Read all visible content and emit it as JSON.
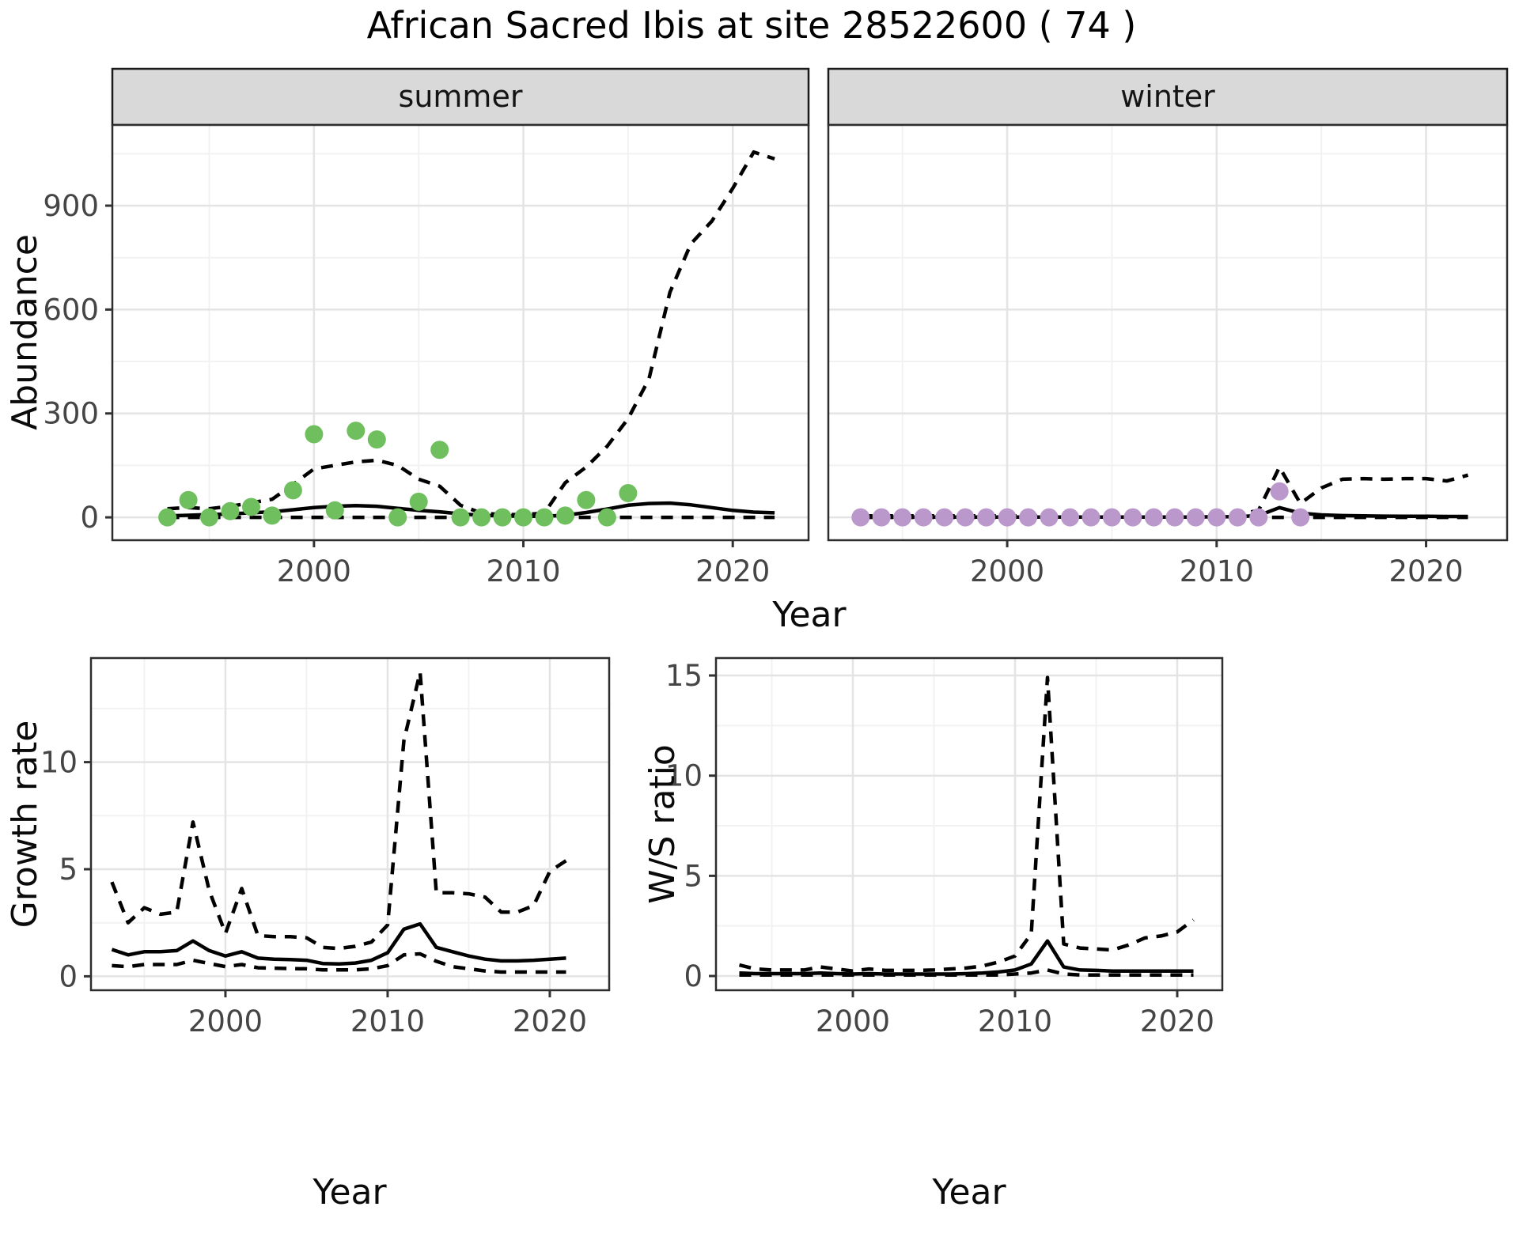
{
  "title": "African Sacred Ibis at site 28522600 ( 74 )",
  "facets": [
    {
      "label": "summer"
    },
    {
      "label": "winter"
    }
  ],
  "colors": {
    "summer_point": "#6fbf5f",
    "winter_point": "#bb98cc",
    "line": "#000000",
    "strip_bg": "#d9d9d9",
    "strip_border": "#1a1a1a",
    "panel_border": "#2d2d2d",
    "grid_major": "#e4e4e4",
    "grid_minor": "#f2f2f2",
    "tick_text": "#454545",
    "tick_mark": "#333333"
  },
  "chart_data": [
    {
      "id": "summer",
      "type": "line",
      "strip": "summer",
      "xlabel": "Year",
      "ylabel": "Abundance",
      "x_ticks": [
        2000,
        2010,
        2020
      ],
      "y_ticks": [
        0,
        300,
        600,
        900
      ],
      "xlim": [
        1990.37,
        2023.62
      ],
      "ylim": [
        -66,
        1133
      ],
      "show_y_labels": true,
      "legend": "none",
      "grid": "on",
      "points": {
        "name": "observed summer counts",
        "color": "#6fbf5f",
        "years": [
          1993,
          1994,
          1995,
          1996,
          1997,
          1998,
          1999,
          2000,
          2001,
          2002,
          2003,
          2004,
          2005,
          2006,
          2007,
          2008,
          2009,
          2010,
          2011,
          2012,
          2013,
          2014,
          2015
        ],
        "values": [
          0,
          50,
          0,
          18,
          30,
          5,
          78,
          240,
          20,
          250,
          225,
          0,
          45,
          195,
          0,
          0,
          0,
          0,
          0,
          5,
          50,
          0,
          70
        ]
      },
      "series": [
        {
          "name": "fit",
          "style": "solid",
          "years": [
            1993,
            1994,
            1995,
            1996,
            1997,
            1998,
            1999,
            2000,
            2001,
            2002,
            2003,
            2004,
            2005,
            2006,
            2007,
            2008,
            2009,
            2010,
            2011,
            2012,
            2013,
            2014,
            2015,
            2016,
            2017,
            2018,
            2019,
            2020,
            2021,
            2022
          ],
          "values": [
            4,
            6,
            8,
            10,
            13,
            16,
            22,
            28,
            32,
            34,
            32,
            26,
            20,
            16,
            10,
            6,
            4,
            3,
            3,
            6,
            14,
            24,
            35,
            40,
            41,
            36,
            28,
            20,
            15,
            13
          ]
        },
        {
          "name": "upper_ci",
          "style": "dashed",
          "years": [
            1993,
            1994,
            1995,
            1996,
            1997,
            1998,
            1999,
            2000,
            2001,
            2002,
            2003,
            2004,
            2005,
            2006,
            2007,
            2008,
            2009,
            2010,
            2011,
            2012,
            2013,
            2014,
            2015,
            2016,
            2017,
            2018,
            2019,
            2020,
            2021,
            2022
          ],
          "values": [
            25,
            28,
            25,
            32,
            42,
            52,
            95,
            140,
            150,
            160,
            165,
            150,
            110,
            90,
            35,
            12,
            8,
            8,
            12,
            100,
            145,
            205,
            285,
            400,
            650,
            790,
            855,
            950,
            1055,
            1035
          ]
        },
        {
          "name": "lower_ci",
          "style": "dashed",
          "years": [
            1993,
            1994,
            1995,
            1996,
            1997,
            1998,
            1999,
            2000,
            2001,
            2002,
            2003,
            2004,
            2005,
            2006,
            2007,
            2008,
            2009,
            2010,
            2011,
            2012,
            2013,
            2014,
            2015,
            2016,
            2017,
            2018,
            2019,
            2020,
            2021,
            2022
          ],
          "values": [
            0,
            0,
            0,
            0,
            0,
            0,
            0,
            0,
            0,
            0,
            0,
            0,
            0,
            0,
            0,
            0,
            0,
            0,
            0,
            0,
            0,
            0,
            0,
            0,
            0,
            0,
            0,
            0,
            0,
            0
          ]
        }
      ]
    },
    {
      "id": "winter",
      "type": "line",
      "strip": "winter",
      "xlabel": "Year",
      "ylabel": "Abundance",
      "x_ticks": [
        2000,
        2010,
        2020
      ],
      "y_ticks": [
        0,
        300,
        600,
        900
      ],
      "xlim": [
        1991.46,
        2023.87
      ],
      "ylim": [
        -66,
        1133
      ],
      "show_y_labels": false,
      "legend": "none",
      "grid": "on",
      "points": {
        "name": "observed winter counts",
        "color": "#bb98cc",
        "years": [
          1993,
          1994,
          1995,
          1996,
          1997,
          1998,
          1999,
          2000,
          2001,
          2002,
          2003,
          2004,
          2005,
          2006,
          2007,
          2008,
          2009,
          2010,
          2011,
          2012,
          2013,
          2014
        ],
        "values": [
          0,
          0,
          0,
          0,
          0,
          0,
          0,
          0,
          0,
          0,
          0,
          0,
          0,
          0,
          0,
          0,
          0,
          0,
          0,
          0,
          75,
          0
        ]
      },
      "series": [
        {
          "name": "fit",
          "style": "solid",
          "years": [
            1993,
            1994,
            1995,
            1996,
            1997,
            1998,
            1999,
            2000,
            2001,
            2002,
            2003,
            2004,
            2005,
            2006,
            2007,
            2008,
            2009,
            2010,
            2011,
            2012,
            2013,
            2014,
            2015,
            2016,
            2017,
            2018,
            2019,
            2020,
            2021,
            2022
          ],
          "values": [
            1,
            1,
            1,
            1,
            1,
            1,
            1,
            1,
            1,
            1,
            1,
            1,
            1,
            1,
            1,
            1,
            1,
            1.5,
            2,
            5,
            28,
            12,
            7,
            5,
            4,
            3.5,
            3,
            3,
            2.5,
            2.5
          ]
        },
        {
          "name": "upper_ci",
          "style": "dashed",
          "years": [
            1993,
            1994,
            1995,
            1996,
            1997,
            1998,
            1999,
            2000,
            2001,
            2002,
            2003,
            2004,
            2005,
            2006,
            2007,
            2008,
            2009,
            2010,
            2011,
            2012,
            2013,
            2014,
            2015,
            2016,
            2017,
            2018,
            2019,
            2020,
            2021,
            2022
          ],
          "values": [
            4,
            4,
            4,
            4,
            4,
            4,
            4,
            4,
            4,
            4,
            4,
            4,
            4,
            4,
            4,
            4,
            5,
            6,
            8,
            20,
            145,
            40,
            85,
            110,
            112,
            110,
            112,
            112,
            105,
            122
          ]
        },
        {
          "name": "lower_ci",
          "style": "dashed",
          "years": [
            1993,
            1994,
            1995,
            1996,
            1997,
            1998,
            1999,
            2000,
            2001,
            2002,
            2003,
            2004,
            2005,
            2006,
            2007,
            2008,
            2009,
            2010,
            2011,
            2012,
            2013,
            2014,
            2015,
            2016,
            2017,
            2018,
            2019,
            2020,
            2021,
            2022
          ],
          "values": [
            0,
            0,
            0,
            0,
            0,
            0,
            0,
            0,
            0,
            0,
            0,
            0,
            0,
            0,
            0,
            0,
            0,
            0,
            0,
            0,
            0,
            0,
            0,
            0,
            0,
            0,
            0,
            0,
            0,
            0
          ]
        }
      ]
    },
    {
      "id": "growth",
      "type": "line",
      "strip": "",
      "xlabel": "Year",
      "ylabel": "Growth rate",
      "x_ticks": [
        2000,
        2010,
        2020
      ],
      "y_ticks": [
        0,
        5,
        10
      ],
      "xlim": [
        1991.71,
        2023.66
      ],
      "ylim": [
        -0.65,
        14.86
      ],
      "show_y_labels": true,
      "legend": "none",
      "grid": "on",
      "series": [
        {
          "name": "fit",
          "style": "solid",
          "years": [
            1993,
            1994,
            1995,
            1996,
            1997,
            1998,
            1999,
            2000,
            2001,
            2002,
            2003,
            2004,
            2005,
            2006,
            2007,
            2008,
            2009,
            2010,
            2011,
            2012,
            2013,
            2014,
            2015,
            2016,
            2017,
            2018,
            2019,
            2020,
            2021
          ],
          "values": [
            1.25,
            1.0,
            1.15,
            1.15,
            1.2,
            1.65,
            1.2,
            0.95,
            1.15,
            0.85,
            0.8,
            0.78,
            0.75,
            0.6,
            0.58,
            0.62,
            0.75,
            1.1,
            2.2,
            2.45,
            1.35,
            1.15,
            0.95,
            0.8,
            0.72,
            0.72,
            0.75,
            0.8,
            0.85
          ]
        },
        {
          "name": "upper_ci",
          "style": "dashed",
          "years": [
            1993,
            1994,
            1995,
            1996,
            1997,
            1998,
            1999,
            2000,
            2001,
            2002,
            2003,
            2004,
            2005,
            2006,
            2007,
            2008,
            2009,
            2010,
            2011,
            2012,
            2013,
            2014,
            2015,
            2016,
            2017,
            2018,
            2019,
            2020,
            2021
          ],
          "values": [
            4.4,
            2.5,
            3.2,
            2.9,
            3.0,
            7.2,
            4.0,
            2.0,
            4.1,
            1.9,
            1.85,
            1.85,
            1.8,
            1.35,
            1.3,
            1.4,
            1.6,
            2.4,
            11.0,
            14.2,
            3.9,
            3.9,
            3.85,
            3.7,
            3.0,
            3.0,
            3.3,
            4.9,
            5.4
          ]
        },
        {
          "name": "lower_ci",
          "style": "dashed",
          "years": [
            1993,
            1994,
            1995,
            1996,
            1997,
            1998,
            1999,
            2000,
            2001,
            2002,
            2003,
            2004,
            2005,
            2006,
            2007,
            2008,
            2009,
            2010,
            2011,
            2012,
            2013,
            2014,
            2015,
            2016,
            2017,
            2018,
            2019,
            2020,
            2021
          ],
          "values": [
            0.5,
            0.45,
            0.55,
            0.55,
            0.55,
            0.75,
            0.6,
            0.45,
            0.55,
            0.4,
            0.38,
            0.36,
            0.35,
            0.3,
            0.3,
            0.3,
            0.35,
            0.5,
            1.0,
            1.05,
            0.7,
            0.45,
            0.35,
            0.25,
            0.2,
            0.2,
            0.2,
            0.2,
            0.2
          ]
        }
      ]
    },
    {
      "id": "ws",
      "type": "line",
      "strip": "",
      "xlabel": "Year",
      "ylabel": "W/S ratio",
      "x_ticks": [
        2000,
        2010,
        2020
      ],
      "y_ticks": [
        0,
        5,
        10,
        15
      ],
      "xlim": [
        1991.56,
        2022.78
      ],
      "ylim": [
        -0.71,
        15.87
      ],
      "show_y_labels": true,
      "legend": "none",
      "grid": "on",
      "series": [
        {
          "name": "fit",
          "style": "solid",
          "years": [
            1993,
            1994,
            1995,
            1996,
            1997,
            1998,
            1999,
            2000,
            2001,
            2002,
            2003,
            2004,
            2005,
            2006,
            2007,
            2008,
            2009,
            2010,
            2011,
            2012,
            2013,
            2014,
            2015,
            2016,
            2017,
            2018,
            2019,
            2020,
            2021
          ],
          "values": [
            0.15,
            0.12,
            0.12,
            0.12,
            0.12,
            0.15,
            0.12,
            0.1,
            0.12,
            0.1,
            0.1,
            0.1,
            0.1,
            0.1,
            0.12,
            0.15,
            0.2,
            0.3,
            0.6,
            1.75,
            0.45,
            0.3,
            0.28,
            0.25,
            0.25,
            0.25,
            0.25,
            0.25,
            0.25
          ]
        },
        {
          "name": "upper_ci",
          "style": "dashed",
          "years": [
            1993,
            1994,
            1995,
            1996,
            1997,
            1998,
            1999,
            2000,
            2001,
            2002,
            2003,
            2004,
            2005,
            2006,
            2007,
            2008,
            2009,
            2010,
            2011,
            2012,
            2013,
            2014,
            2015,
            2016,
            2017,
            2018,
            2019,
            2020,
            2021
          ],
          "values": [
            0.55,
            0.35,
            0.3,
            0.3,
            0.3,
            0.45,
            0.35,
            0.25,
            0.35,
            0.28,
            0.28,
            0.28,
            0.3,
            0.35,
            0.4,
            0.5,
            0.7,
            1.0,
            2.1,
            14.9,
            1.6,
            1.4,
            1.35,
            1.3,
            1.55,
            1.9,
            2.0,
            2.2,
            2.8
          ]
        },
        {
          "name": "lower_ci",
          "style": "dashed",
          "years": [
            1993,
            1994,
            1995,
            1996,
            1997,
            1998,
            1999,
            2000,
            2001,
            2002,
            2003,
            2004,
            2005,
            2006,
            2007,
            2008,
            2009,
            2010,
            2011,
            2012,
            2013,
            2014,
            2015,
            2016,
            2017,
            2018,
            2019,
            2020,
            2021
          ],
          "values": [
            0.05,
            0.05,
            0.05,
            0.05,
            0.05,
            0.05,
            0.05,
            0.05,
            0.05,
            0.05,
            0.05,
            0.05,
            0.05,
            0.05,
            0.05,
            0.05,
            0.05,
            0.1,
            0.15,
            0.3,
            0.1,
            0.05,
            0.05,
            0.05,
            0.05,
            0.05,
            0.05,
            0.05,
            0.05
          ]
        }
      ]
    }
  ]
}
